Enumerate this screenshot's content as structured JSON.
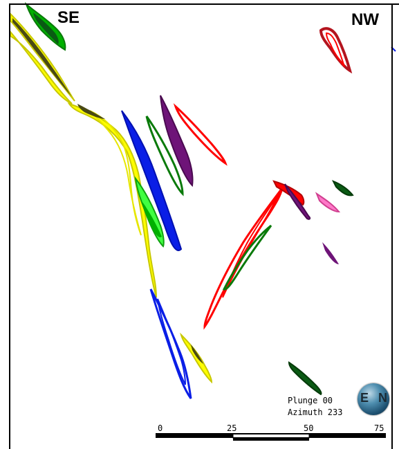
{
  "view": {
    "left_direction": "SE",
    "right_direction": "NW",
    "plunge": "Plunge 00",
    "azimuth": "Azimuth 233"
  },
  "scale_bar": {
    "labels": [
      "0",
      "25",
      "50",
      "75"
    ]
  },
  "globe": {
    "left_letter": "E",
    "right_letter": "N"
  },
  "colors": {
    "yellow": "#ffff00",
    "green": "#00b000",
    "light_green": "#40ff40",
    "dark_green": "#0a5a14",
    "blue": "#0a1ee6",
    "red": "#ff0000",
    "dark_red": "#b4141e",
    "purple": "#6e1478",
    "pink": "#ff78c8",
    "dark_olive": "#4a4a14"
  }
}
